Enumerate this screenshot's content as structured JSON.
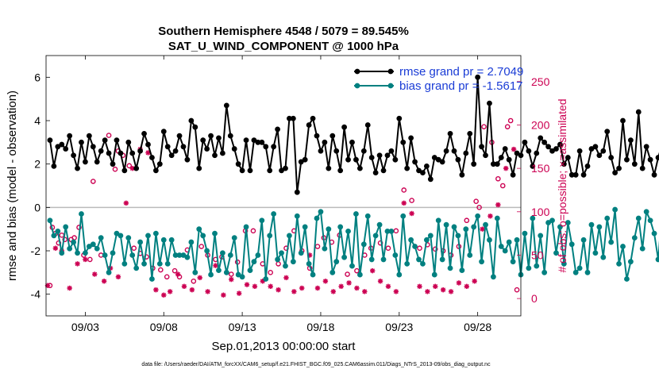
{
  "chart_data": {
    "type": "line",
    "title": "Southern Hemisphere 4548 / 5079 = 89.545%",
    "subtitle": "SAT_U_WIND_COMPONENT @ 1000 hPa",
    "xlabel": "Sep.01,2013 00:00:00 start",
    "ylabel": "rmse and bias (model - observation)",
    "y2label": "# of obs: o=possible; ×=assimilated",
    "footer": "data file: /Users/raeder/DAI/ATM_forcXX/CAM6_setup/f.e21.FHIST_BGC.f09_025.CAM6assim.011/Diags_NTrS_2013-09/obs_diag_output.nc",
    "xlim": [
      0.5,
      30.75
    ],
    "ylim": [
      -5,
      7
    ],
    "y2lim": [
      -20,
      280
    ],
    "x_ticks": [
      3,
      8,
      13,
      18,
      23,
      28
    ],
    "x_tick_labels": [
      "09/03",
      "09/08",
      "09/13",
      "09/18",
      "09/23",
      "09/28"
    ],
    "y_ticks": [
      -4,
      -2,
      0,
      2,
      4,
      6
    ],
    "y2_ticks": [
      0,
      50,
      100,
      150,
      200,
      250
    ],
    "zero_line": 0,
    "legend_position": "top-right",
    "colors": {
      "rmse": "#000000",
      "bias": "#008080",
      "counts": "#cc0052",
      "zero": "#bbbbbb"
    },
    "series": [
      {
        "name": "rmse grand pr = 2.7049",
        "axis": "left",
        "values": [
          3.1,
          1.9,
          2.8,
          2.9,
          2.7,
          3.3,
          2.4,
          1.8,
          3.0,
          2.1,
          3.3,
          2.8,
          2.1,
          2.6,
          3.1,
          2.5,
          2.0,
          3.1,
          2.5,
          1.7,
          3.0,
          2.5,
          1.8,
          2.6,
          3.4,
          2.9,
          2.3,
          1.7,
          2.0,
          3.5,
          2.8,
          2.4,
          2.6,
          3.3,
          2.8,
          2.2,
          4.0,
          3.7,
          1.8,
          3.1,
          2.7,
          3.3,
          2.4,
          3.2,
          2.5,
          4.7,
          3.3,
          2.7,
          2.0,
          1.7,
          3.1,
          1.7,
          3.1,
          3.0,
          3.0,
          2.8,
          1.7,
          2.8,
          3.6,
          1.7,
          1.8,
          4.1,
          4.1,
          0.7,
          2.1,
          2.2,
          3.8,
          4.1,
          3.3,
          2.6,
          3.0,
          1.8,
          3.3,
          2.6,
          1.7,
          3.7,
          2.2,
          3.0,
          2.2,
          1.8,
          2.6,
          3.8,
          2.3,
          1.6,
          2.4,
          1.7,
          2.4,
          2.6,
          2.2,
          4.1,
          3.0,
          1.8,
          3.2,
          2.1,
          1.7,
          1.6,
          1.9,
          1.3,
          2.3,
          2.2,
          2.1,
          2.6,
          3.4,
          2.6,
          2.2,
          1.5,
          2.5,
          3.4,
          2.0,
          6.0,
          2.8,
          2.4,
          4.8,
          2.0,
          2.0,
          2.3,
          2.7,
          2.2,
          1.5,
          2.5,
          2.4,
          3.0,
          2.6,
          1.9,
          2.5,
          3.2,
          3.0,
          2.8,
          2.6,
          2.7,
          2.9,
          2.0,
          2.3,
          1.5,
          1.5,
          2.6,
          1.5,
          1.9,
          2.7,
          2.8,
          2.4,
          2.6,
          3.5,
          2.3,
          1.6,
          1.8,
          4.0,
          2.2,
          3.1,
          2.0,
          4.4,
          1.8,
          2.8,
          2.2,
          1.5,
          2.3,
          2.9,
          2.7,
          2.2,
          1.8,
          2.1,
          2.2,
          1.9,
          2.0,
          1.5,
          2.3,
          3.3,
          3.4
        ]
      },
      {
        "name": "bias grand pr = -1.5617",
        "axis": "left",
        "values": [
          -0.6,
          -1.3,
          -1.1,
          -2.1,
          -0.9,
          -1.9,
          -1.6,
          -2.1,
          -0.3,
          -2.1,
          -1.8,
          -1.7,
          -1.9,
          -1.4,
          -2.2,
          -3.0,
          -2.1,
          -1.2,
          -1.3,
          -2.6,
          -1.4,
          -2.2,
          -2.8,
          -1.6,
          -2.6,
          -1.3,
          -3.3,
          -1.2,
          -2.6,
          -1.5,
          -2.6,
          -1.5,
          -2.2,
          -2.2,
          -2.2,
          -2.3,
          -1.6,
          -3.0,
          -1.0,
          -1.3,
          -2.0,
          -3.1,
          -1.2,
          -2.9,
          -2.1,
          -3.0,
          -2.2,
          -1.4,
          -3.1,
          -3.2,
          -0.9,
          -2.9,
          -2.5,
          -2.2,
          -0.6,
          -3.3,
          -1.3,
          -0.3,
          -2.4,
          -2.1,
          -2.7,
          -1.3,
          -2.5,
          -0.4,
          -2.1,
          -0.9,
          -2.6,
          -3.1,
          -0.5,
          -0.2,
          -1.9,
          -1.0,
          -3.0,
          -2.5,
          -0.9,
          -2.3,
          -1.1,
          -2.7,
          -0.3,
          -3.1,
          -1.7,
          -0.4,
          -2.4,
          -1.3,
          -0.8,
          -2.4,
          -1.1,
          -1.1,
          -2.2,
          -3.1,
          -0.4,
          -2.6,
          -1.5,
          -1.8,
          -2.4,
          -2.6,
          -1.5,
          -1.3,
          -3.1,
          -0.6,
          -2.4,
          -0.8,
          -2.8,
          -0.9,
          -1.3,
          -2.9,
          -1.0,
          -2.2,
          -0.9,
          -0.4,
          -2.5,
          -0.8,
          -1.5,
          -3.2,
          -0.5,
          -1.8,
          -2.0,
          -1.6,
          -2.5,
          -1.5,
          -3.1,
          -1.2,
          -2.8,
          -0.5,
          -2.7,
          -1.3,
          -3.0,
          -0.7,
          -0.6,
          -2.1,
          -0.9,
          -2.6,
          -0.7,
          -1.7,
          -3.0,
          -2.8,
          -1.5,
          -3.0,
          -0.8,
          -2.1,
          -0.9,
          -2.3,
          -0.5,
          -1.6,
          -0.1,
          -2.6,
          -1.8,
          -3.3,
          -2.5,
          -1.4,
          -0.5,
          -1.9,
          -0.2,
          -0.6,
          -1.2,
          -2.4,
          -0.2,
          -1.1,
          -0.3,
          -0.3,
          -0.8,
          -1.1,
          -0.4,
          -1.8,
          -1.0,
          -2.3,
          -2.0
        ]
      },
      {
        "name": "possible",
        "axis": "right",
        "marker": "o",
        "x": [
          0.75,
          0.9,
          1.1,
          1.3,
          1.5,
          1.7,
          2.1,
          2.3,
          2.6,
          2.9,
          3.3,
          3.5,
          4.0,
          4.5,
          4.9,
          5.1,
          5.4,
          5.8,
          6.1,
          6.5,
          6.9,
          7.3,
          7.8,
          8.2,
          8.7,
          9.0,
          9.5,
          9.9,
          10.4,
          10.8,
          11.3,
          11.7,
          12.3,
          12.7,
          13.2,
          13.7,
          14.3,
          14.8,
          15.3,
          15.8,
          16.3,
          16.8,
          17.3,
          17.8,
          18.2,
          18.7,
          19.2,
          19.7,
          20.3,
          20.8,
          21.2,
          21.8,
          22.3,
          22.8,
          23.3,
          23.8,
          24.3,
          24.8,
          25.3,
          25.8,
          26.3,
          26.8,
          27.3,
          27.9,
          28.1,
          28.4,
          28.9,
          29.3,
          29.6,
          29.9,
          30.1,
          30.5
        ],
        "values": [
          15,
          82,
          75,
          64,
          73,
          68,
          68,
          70,
          82,
          50,
          45,
          135,
          50,
          188,
          149,
          170,
          165,
          153,
          58,
          52,
          48,
          35,
          33,
          25,
          32,
          25,
          56,
          20,
          60,
          50,
          45,
          48,
          28,
          42,
          78,
          78,
          40,
          30,
          40,
          58,
          78,
          55,
          35,
          60,
          70,
          65,
          73,
          28,
          32,
          50,
          58,
          64,
          58,
          78,
          125,
          113,
          58,
          62,
          57,
          55,
          50,
          60,
          90,
          112,
          105,
          198,
          180,
          138,
          130,
          198,
          205,
          10
        ]
      },
      {
        "name": "assimilated",
        "axis": "right",
        "marker": "x",
        "x": [
          0.6,
          1.1,
          1.5,
          2.0,
          2.5,
          3.0,
          3.6,
          4.2,
          4.6,
          5.1,
          5.6,
          6.0,
          6.5,
          7.0,
          7.5,
          8.0,
          8.4,
          8.9,
          9.3,
          9.8,
          10.3,
          10.8,
          11.3,
          11.8,
          12.3,
          12.8,
          13.3,
          13.8,
          14.3,
          14.8,
          15.3,
          15.8,
          16.3,
          16.8,
          17.3,
          17.8,
          18.3,
          18.8,
          19.3,
          19.8,
          20.3,
          20.8,
          21.3,
          21.8,
          22.3,
          22.8,
          23.3,
          23.8,
          24.3,
          24.8,
          25.3,
          25.8,
          26.3,
          26.8,
          27.3,
          27.8,
          28.3,
          28.8,
          29.3,
          29.8,
          30.3
        ],
        "values": [
          15,
          58,
          55,
          12,
          40,
          45,
          28,
          20,
          35,
          25,
          110,
          150,
          172,
          168,
          10,
          4,
          8,
          28,
          14,
          10,
          24,
          8,
          38,
          4,
          22,
          6,
          16,
          14,
          20,
          14,
          10,
          24,
          8,
          12,
          50,
          12,
          20,
          8,
          14,
          18,
          12,
          8,
          32,
          20,
          14,
          8,
          110,
          98,
          14,
          8,
          14,
          10,
          8,
          18,
          14,
          20,
          80,
          95,
          108,
          150,
          172
        ]
      }
    ]
  }
}
